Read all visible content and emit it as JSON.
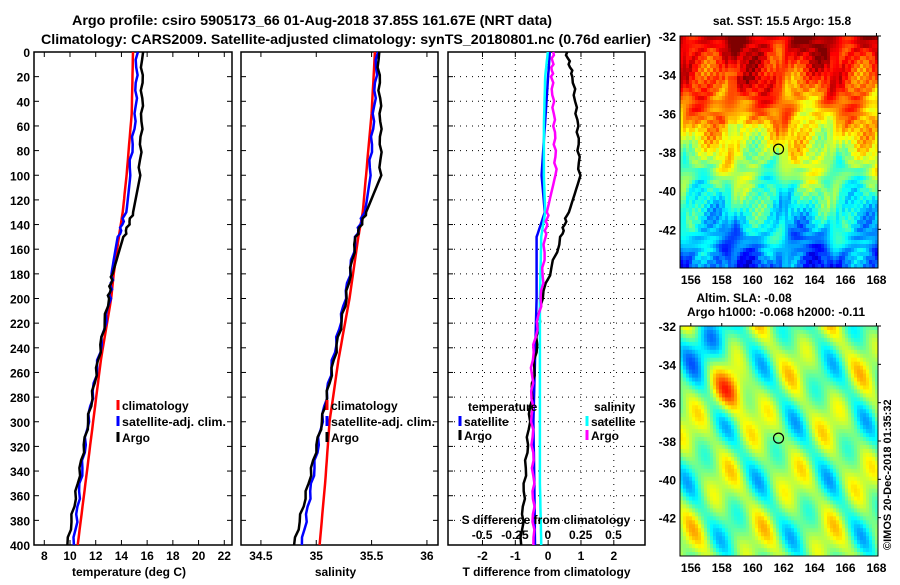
{
  "title_line1": "Argo profile: csiro 5905173_66 01-Aug-2018 37.85S 161.67E (NRT data)",
  "title_line2": "Climatology: CARS2009. Satellite-adjusted climatology: synTS_20180801.nc (0.76d earlier)",
  "watermark": "©IMOS 20-Dec-2018 01:35:32",
  "colors": {
    "climatology": "#ff0000",
    "satellite": "#0000ff",
    "argo": "#000000",
    "salinity_satellite": "#00ffff",
    "salinity_argo": "#ff00ff"
  },
  "chart_data": [
    {
      "type": "line",
      "id": "temperature",
      "xlabel": "temperature (deg C)",
      "ylabel": "depth",
      "xlim": [
        7.2,
        22.6
      ],
      "ylim": [
        400,
        0
      ],
      "xticks": [
        "8",
        "10",
        "12",
        "14",
        "16",
        "18",
        "20",
        "22"
      ],
      "yticks": [
        "0",
        "20",
        "40",
        "60",
        "80",
        "100",
        "120",
        "140",
        "160",
        "180",
        "200",
        "220",
        "240",
        "260",
        "280",
        "300",
        "320",
        "340",
        "360",
        "380",
        "400"
      ],
      "legend": [
        "climatology",
        "satellite-adj. clim.",
        "Argo"
      ],
      "depth": [
        0,
        50,
        100,
        130,
        150,
        180,
        200,
        250,
        300,
        350,
        400
      ],
      "series": [
        {
          "name": "climatology",
          "values": [
            14.9,
            14.8,
            14.4,
            14.1,
            13.8,
            13.4,
            13.2,
            12.4,
            11.8,
            11.2,
            10.6
          ]
        },
        {
          "name": "satellite-adj. clim.",
          "values": [
            15.2,
            15.1,
            14.6,
            14.3,
            13.8,
            13.3,
            13.1,
            12.2,
            11.4,
            10.8,
            10.3
          ]
        },
        {
          "name": "Argo",
          "values": [
            15.6,
            15.6,
            15.4,
            14.9,
            14.2,
            13.3,
            13.0,
            12.2,
            11.4,
            10.6,
            9.8
          ]
        }
      ]
    },
    {
      "type": "line",
      "id": "salinity",
      "xlabel": "salinity",
      "ylabel": "depth",
      "xlim": [
        34.32,
        36.1
      ],
      "ylim": [
        400,
        0
      ],
      "xticks": [
        "34.5",
        "35",
        "35.5",
        "36"
      ],
      "legend": [
        "climatology",
        "satellite-adj. clim.",
        "Argo"
      ],
      "depth": [
        0,
        50,
        100,
        130,
        150,
        200,
        250,
        300,
        350,
        400
      ],
      "series": [
        {
          "name": "climatology",
          "values": [
            35.53,
            35.5,
            35.45,
            35.42,
            35.38,
            35.3,
            35.2,
            35.12,
            35.08,
            35.03
          ]
        },
        {
          "name": "satellite-adj. clim.",
          "values": [
            35.55,
            35.52,
            35.48,
            35.43,
            35.36,
            35.26,
            35.15,
            35.05,
            34.96,
            34.87
          ]
        },
        {
          "name": "Argo",
          "values": [
            35.56,
            35.58,
            35.58,
            35.45,
            35.36,
            35.27,
            35.16,
            35.05,
            34.93,
            34.8
          ]
        }
      ]
    },
    {
      "type": "line",
      "id": "difference",
      "xlabel": "T difference from climatology",
      "x2label": "S difference from climatology",
      "xlim": [
        -3.05,
        2.95
      ],
      "x2lim": [
        -0.76,
        0.74
      ],
      "ylim": [
        400,
        0
      ],
      "xticks": [
        "-2",
        "-1",
        "0",
        "1",
        "2"
      ],
      "x2ticks": [
        "-0.5",
        "-0.25",
        "0",
        "0.25",
        "0.5"
      ],
      "legend_temperature": {
        "title": "temperature",
        "items": [
          "satellite",
          "Argo"
        ]
      },
      "legend_salinity": {
        "title": "salinity",
        "items": [
          "satellite",
          "Argo"
        ]
      },
      "depth": [
        0,
        20,
        60,
        100,
        130,
        150,
        200,
        250,
        300,
        350,
        400
      ],
      "series": [
        {
          "name": "T satellite",
          "axis": "T",
          "values": [
            0.05,
            0.0,
            -0.1,
            -0.2,
            -0.1,
            -0.35,
            -0.35,
            -0.4,
            -0.45,
            -0.42,
            -0.4
          ]
        },
        {
          "name": "T Argo",
          "axis": "T",
          "values": [
            0.55,
            0.75,
            0.9,
            0.95,
            0.6,
            0.4,
            -0.2,
            -0.4,
            -0.58,
            -0.72,
            -0.82
          ]
        },
        {
          "name": "S satellite",
          "axis": "S",
          "values": [
            0.0,
            -0.02,
            -0.03,
            -0.03,
            -0.02,
            -0.05,
            -0.06,
            -0.06,
            -0.06,
            -0.06,
            -0.05
          ]
        },
        {
          "name": "S Argo",
          "axis": "S",
          "values": [
            0.04,
            0.03,
            0.05,
            0.06,
            0.0,
            -0.02,
            -0.05,
            -0.12,
            -0.12,
            -0.11,
            -0.11
          ]
        }
      ]
    }
  ],
  "maps": [
    {
      "id": "sst",
      "title": "sat. SST: 15.5 Argo: 15.8",
      "xticks": [
        "156",
        "158",
        "160",
        "162",
        "164",
        "166",
        "168"
      ],
      "yticks": [
        "-32",
        "-34",
        "-36",
        "-38",
        "-40",
        "-42"
      ],
      "lon": 161.67,
      "lat": -37.85
    },
    {
      "id": "sla",
      "title1": "Altim. SLA: -0.08",
      "title2": "Argo h1000: -0.068 h2000: -0.11",
      "xticks": [
        "156",
        "158",
        "160",
        "162",
        "164",
        "166",
        "168"
      ],
      "yticks": [
        "-32",
        "-34",
        "-36",
        "-38",
        "-40",
        "-42"
      ],
      "lon": 161.67,
      "lat": -37.85
    }
  ]
}
